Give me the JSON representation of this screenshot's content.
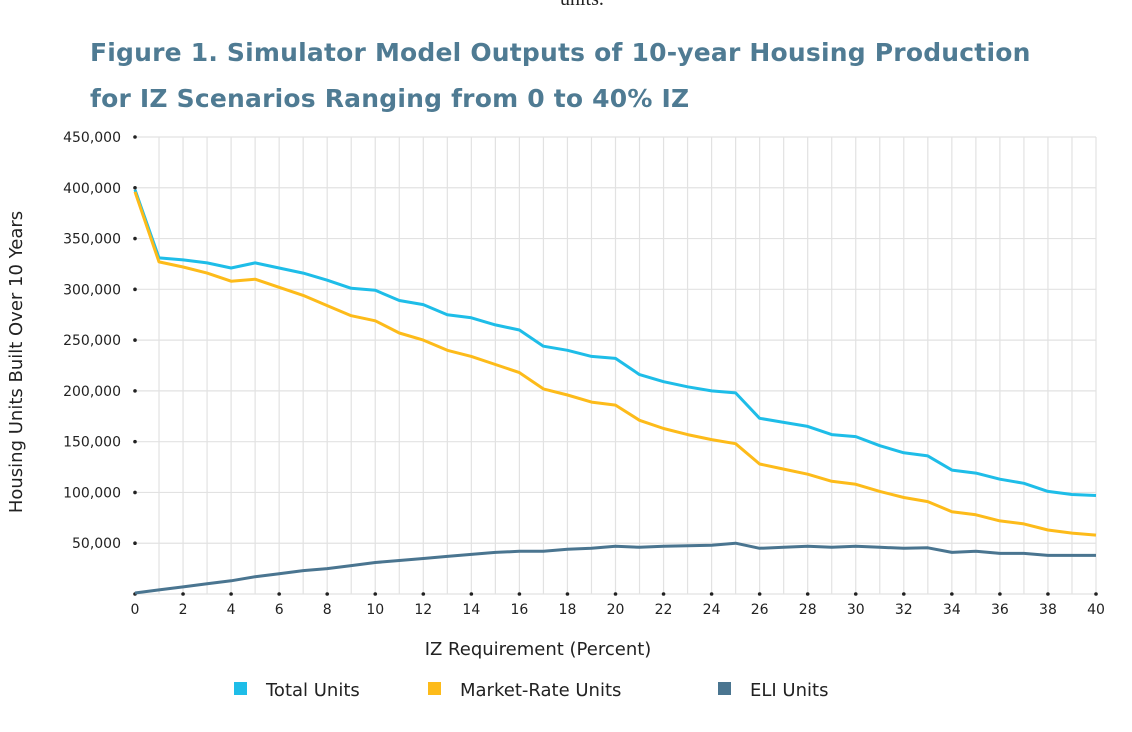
{
  "page": {
    "top_text": "units.",
    "title_line1": "Figure 1. Simulator Model Outputs of 10-year Housing Production",
    "title_line2": "for IZ Scenarios Ranging from 0 to 40% IZ"
  },
  "chart_data": {
    "type": "line",
    "title": "Figure 1. Simulator Model Outputs of 10-year Housing Production for IZ Scenarios Ranging from 0 to 40% IZ",
    "xlabel": "IZ Requirement (Percent)",
    "ylabel": "Housing Units  Built Over 10 Years",
    "xlim": [
      0,
      40
    ],
    "ylim": [
      0,
      450000
    ],
    "grid": true,
    "legend_position": "bottom",
    "x_tick_labels": [
      "0",
      "2",
      "4",
      "6",
      "8",
      "10",
      "12",
      "14",
      "16",
      "18",
      "20",
      "22",
      "24",
      "26",
      "28",
      "30",
      "32",
      "34",
      "36",
      "38",
      "40"
    ],
    "y_tick_labels": [
      "50,000",
      "100,000",
      "150,000",
      "200,000",
      "250,000",
      "300,000",
      "350,000",
      "400,000",
      "450,000"
    ],
    "y_tick_values": [
      50000,
      100000,
      150000,
      200000,
      250000,
      300000,
      350000,
      400000,
      450000
    ],
    "x": [
      0,
      1,
      2,
      3,
      4,
      5,
      6,
      7,
      8,
      9,
      10,
      11,
      12,
      13,
      14,
      15,
      16,
      17,
      18,
      19,
      20,
      21,
      22,
      23,
      24,
      25,
      26,
      27,
      28,
      29,
      30,
      31,
      32,
      33,
      34,
      35,
      36,
      37,
      38,
      39,
      40
    ],
    "series": [
      {
        "name": "Total Units",
        "color": "#1ebde8",
        "values": [
          398000,
          331000,
          329000,
          326000,
          321000,
          326000,
          321000,
          316000,
          309000,
          301000,
          299000,
          289000,
          285000,
          275000,
          272000,
          265000,
          260000,
          244000,
          240000,
          234000,
          232000,
          216000,
          209000,
          204000,
          200000,
          198000,
          173000,
          169000,
          165000,
          157000,
          155000,
          146000,
          139000,
          136000,
          122000,
          119000,
          113000,
          109000,
          101000,
          98000,
          97000
        ]
      },
      {
        "name": "Market-Rate Units",
        "color": "#fdbb1a",
        "values": [
          396000,
          327000,
          322000,
          316000,
          308000,
          310000,
          302000,
          294000,
          284000,
          274000,
          269000,
          257000,
          250000,
          240000,
          234000,
          226000,
          218000,
          202000,
          196000,
          189000,
          186000,
          171000,
          163000,
          157000,
          152000,
          148000,
          128000,
          123000,
          118000,
          111000,
          108000,
          101000,
          95000,
          91000,
          81000,
          78000,
          72000,
          69000,
          63000,
          60000,
          58000
        ]
      },
      {
        "name": "ELI Units",
        "color": "#4a7590",
        "values": [
          1000,
          4000,
          7000,
          10000,
          13000,
          17000,
          20000,
          23000,
          25000,
          28000,
          31000,
          33000,
          35000,
          37000,
          39000,
          41000,
          42000,
          42000,
          44000,
          45000,
          47000,
          46000,
          47000,
          47500,
          48000,
          50000,
          45000,
          46000,
          47000,
          46000,
          47000,
          46000,
          45000,
          45500,
          41000,
          42000,
          40000,
          40000,
          38000,
          38000,
          38000
        ]
      }
    ]
  }
}
